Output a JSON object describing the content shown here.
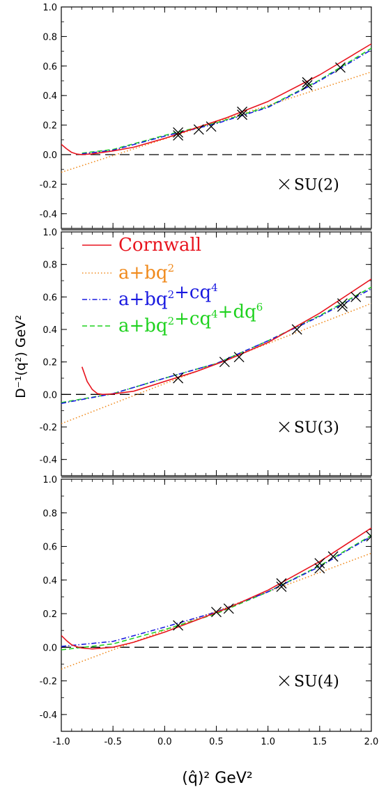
{
  "chart_data": {
    "type": "line",
    "ylabel": "D⁻¹(q²)  GeV²",
    "xlabel": "(q̂)²   GeV²",
    "xlim": [
      -1.0,
      2.0
    ],
    "ylim": [
      -0.5,
      1.0
    ],
    "x_ticks": [
      "-1.0",
      "-0.5",
      "0.0",
      "0.5",
      "1.0",
      "1.5",
      "2.0"
    ],
    "y_ticks": [
      "-0.4",
      "-0.2",
      "0.0",
      "0.2",
      "0.4",
      "0.6",
      "0.8",
      "1.0"
    ],
    "colors": {
      "cornwall": "#e8141e",
      "quadratic": "#f08a1c",
      "quartic": "#1a1ae0",
      "sextic": "#1fd21f",
      "zero_line": "#000000",
      "data_marker": "#000000"
    },
    "legend": {
      "placement": "top-left of middle panel",
      "entries": [
        {
          "key": "cornwall",
          "label": "Cornwall"
        },
        {
          "key": "quadratic",
          "label": "a+bq",
          "exps": [
            "2"
          ]
        },
        {
          "key": "quartic",
          "label": "a+bq+cq",
          "exps": [
            "2",
            "4"
          ]
        },
        {
          "key": "sextic",
          "label": "a+bq+cq+dq",
          "exps": [
            "2",
            "4",
            "6"
          ]
        }
      ]
    },
    "panels": [
      {
        "label": "SU(2)",
        "cornwall": {
          "x": [
            -1.0,
            -0.95,
            -0.9,
            -0.85,
            -0.8,
            -0.7,
            -0.5,
            -0.3,
            0.0,
            0.3,
            0.6,
            1.0,
            1.5,
            2.0
          ],
          "y": [
            0.07,
            0.04,
            0.015,
            0.004,
            0.0,
            0.005,
            0.025,
            0.05,
            0.11,
            0.18,
            0.25,
            0.36,
            0.54,
            0.75
          ]
        },
        "quadratic": {
          "x": [
            -1.0,
            2.0
          ],
          "y": [
            -0.12,
            0.56
          ]
        },
        "quartic": {
          "x": [
            -0.8,
            -0.5,
            0.0,
            0.5,
            1.0,
            1.5,
            2.0
          ],
          "y": [
            0.005,
            0.03,
            0.125,
            0.21,
            0.32,
            0.5,
            0.71
          ]
        },
        "sextic": {
          "x": [
            -0.8,
            -0.5,
            0.0,
            0.5,
            1.0,
            1.5,
            2.0
          ],
          "y": [
            0.01,
            0.035,
            0.13,
            0.215,
            0.325,
            0.505,
            0.72
          ]
        },
        "points": {
          "x": [
            0.13,
            0.13,
            0.33,
            0.45,
            0.75,
            0.75,
            1.38,
            1.38,
            1.7
          ],
          "y": [
            0.13,
            0.15,
            0.17,
            0.19,
            0.27,
            0.29,
            0.47,
            0.49,
            0.59
          ]
        }
      },
      {
        "label": "SU(3)",
        "cornwall": {
          "x": [
            -0.8,
            -0.75,
            -0.7,
            -0.65,
            -0.6,
            -0.5,
            -0.3,
            0.0,
            0.3,
            0.6,
            1.0,
            1.5,
            2.0
          ],
          "y": [
            0.17,
            0.08,
            0.03,
            0.005,
            0.0,
            0.003,
            0.02,
            0.08,
            0.14,
            0.21,
            0.32,
            0.5,
            0.71
          ]
        },
        "quadratic": {
          "x": [
            -1.0,
            2.0
          ],
          "y": [
            -0.18,
            0.56
          ]
        },
        "quartic": {
          "x": [
            -1.0,
            -0.5,
            0.0,
            0.5,
            1.0,
            1.5,
            2.0
          ],
          "y": [
            -0.055,
            0.005,
            0.1,
            0.19,
            0.33,
            0.48,
            0.65
          ]
        },
        "sextic": {
          "x": [
            -1.0,
            -0.5,
            0.0,
            0.5,
            1.0,
            1.5,
            2.0
          ],
          "y": [
            -0.05,
            0.005,
            0.1,
            0.19,
            0.33,
            0.485,
            0.66
          ]
        },
        "points": {
          "x": [
            0.13,
            0.58,
            0.72,
            1.28,
            1.72,
            1.72,
            1.85
          ],
          "y": [
            0.1,
            0.2,
            0.23,
            0.4,
            0.54,
            0.56,
            0.6
          ]
        }
      },
      {
        "label": "SU(4)",
        "cornwall": {
          "x": [
            -1.0,
            -0.95,
            -0.9,
            -0.85,
            -0.8,
            -0.7,
            -0.5,
            -0.3,
            0.0,
            0.3,
            0.6,
            1.0,
            1.5,
            2.0
          ],
          "y": [
            0.07,
            0.04,
            0.015,
            0.003,
            -0.005,
            -0.01,
            0.0,
            0.03,
            0.09,
            0.16,
            0.23,
            0.34,
            0.51,
            0.71
          ]
        },
        "quadratic": {
          "x": [
            -1.0,
            2.0
          ],
          "y": [
            -0.13,
            0.56
          ]
        },
        "quartic": {
          "x": [
            -1.0,
            -0.5,
            0.0,
            0.5,
            1.0,
            1.5,
            2.0
          ],
          "y": [
            0.005,
            0.035,
            0.12,
            0.21,
            0.33,
            0.48,
            0.66
          ]
        },
        "sextic": {
          "x": [
            -1.0,
            -0.5,
            0.0,
            0.5,
            1.0,
            1.5,
            2.0
          ],
          "y": [
            -0.015,
            0.02,
            0.105,
            0.2,
            0.33,
            0.485,
            0.665
          ]
        },
        "points": {
          "x": [
            0.13,
            0.5,
            0.62,
            1.13,
            1.13,
            1.5,
            1.5,
            1.63,
            2.0
          ],
          "y": [
            0.13,
            0.21,
            0.23,
            0.36,
            0.38,
            0.47,
            0.5,
            0.54,
            0.66
          ]
        }
      }
    ]
  }
}
